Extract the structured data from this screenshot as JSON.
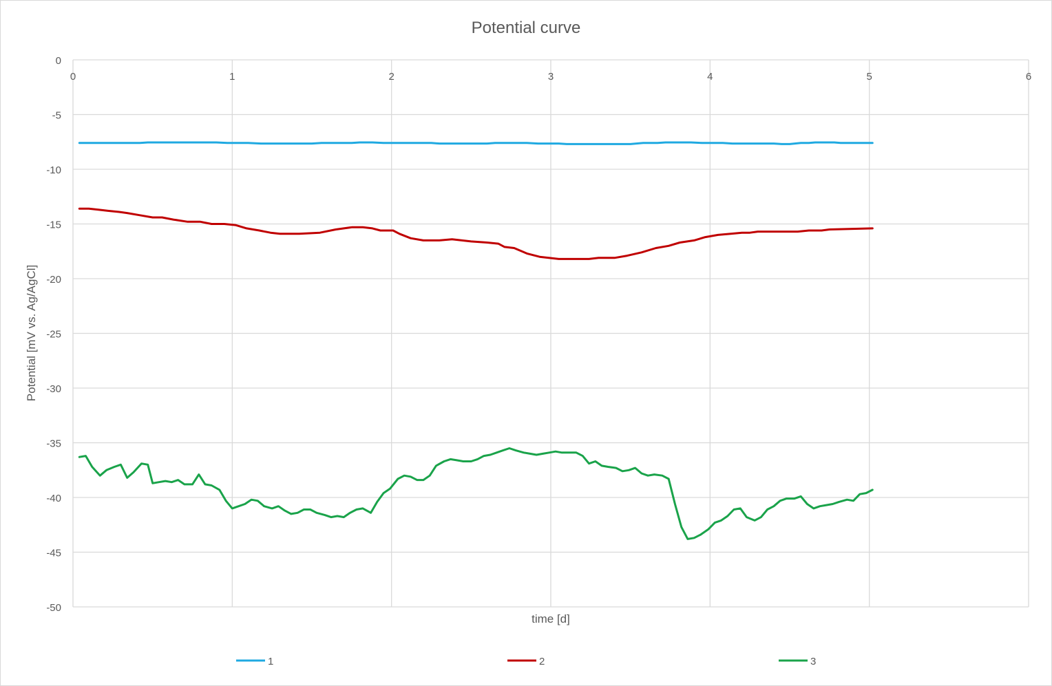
{
  "chart_data": {
    "type": "line",
    "title": "Potential curve",
    "xlabel": "time [d]",
    "ylabel": "Potential [mV vs. Ag/AgCl]",
    "xlim": [
      0,
      6
    ],
    "ylim": [
      -50,
      0
    ],
    "xticks": [
      0,
      1,
      2,
      3,
      4,
      5,
      6
    ],
    "yticks": [
      0,
      -5,
      -10,
      -15,
      -20,
      -25,
      -30,
      -35,
      -40,
      -45,
      -50
    ],
    "grid": true,
    "legend_position": "bottom",
    "series": [
      {
        "name": "1",
        "color": "#1fa9e1",
        "points": [
          [
            0.04,
            -7.6
          ],
          [
            0.3,
            -7.6
          ],
          [
            0.42,
            -7.6
          ],
          [
            0.47,
            -7.55
          ],
          [
            0.6,
            -7.55
          ],
          [
            0.9,
            -7.55
          ],
          [
            0.97,
            -7.6
          ],
          [
            1.1,
            -7.6
          ],
          [
            1.18,
            -7.65
          ],
          [
            1.5,
            -7.65
          ],
          [
            1.56,
            -7.6
          ],
          [
            1.75,
            -7.6
          ],
          [
            1.8,
            -7.55
          ],
          [
            1.88,
            -7.55
          ],
          [
            1.95,
            -7.6
          ],
          [
            2.25,
            -7.6
          ],
          [
            2.3,
            -7.65
          ],
          [
            2.6,
            -7.65
          ],
          [
            2.65,
            -7.6
          ],
          [
            2.85,
            -7.6
          ],
          [
            2.92,
            -7.65
          ],
          [
            3.05,
            -7.65
          ],
          [
            3.1,
            -7.7
          ],
          [
            3.5,
            -7.7
          ],
          [
            3.58,
            -7.6
          ],
          [
            3.67,
            -7.6
          ],
          [
            3.72,
            -7.55
          ],
          [
            3.88,
            -7.55
          ],
          [
            3.95,
            -7.6
          ],
          [
            4.08,
            -7.6
          ],
          [
            4.14,
            -7.65
          ],
          [
            4.4,
            -7.65
          ],
          [
            4.45,
            -7.7
          ],
          [
            4.5,
            -7.7
          ],
          [
            4.57,
            -7.6
          ],
          [
            4.62,
            -7.6
          ],
          [
            4.66,
            -7.55
          ],
          [
            4.78,
            -7.55
          ],
          [
            4.82,
            -7.6
          ],
          [
            5.02,
            -7.6
          ]
        ]
      },
      {
        "name": "2",
        "color": "#c00000",
        "points": [
          [
            0.04,
            -13.6
          ],
          [
            0.1,
            -13.6
          ],
          [
            0.16,
            -13.7
          ],
          [
            0.22,
            -13.8
          ],
          [
            0.29,
            -13.9
          ],
          [
            0.34,
            -14.0
          ],
          [
            0.42,
            -14.2
          ],
          [
            0.5,
            -14.4
          ],
          [
            0.56,
            -14.4
          ],
          [
            0.63,
            -14.6
          ],
          [
            0.72,
            -14.8
          ],
          [
            0.8,
            -14.8
          ],
          [
            0.87,
            -15.0
          ],
          [
            0.95,
            -15.0
          ],
          [
            1.02,
            -15.1
          ],
          [
            1.09,
            -15.4
          ],
          [
            1.17,
            -15.6
          ],
          [
            1.24,
            -15.8
          ],
          [
            1.3,
            -15.9
          ],
          [
            1.42,
            -15.9
          ],
          [
            1.55,
            -15.8
          ],
          [
            1.65,
            -15.5
          ],
          [
            1.75,
            -15.3
          ],
          [
            1.82,
            -15.3
          ],
          [
            1.88,
            -15.4
          ],
          [
            1.93,
            -15.6
          ],
          [
            2.01,
            -15.6
          ],
          [
            2.05,
            -15.9
          ],
          [
            2.12,
            -16.3
          ],
          [
            2.2,
            -16.5
          ],
          [
            2.3,
            -16.5
          ],
          [
            2.38,
            -16.4
          ],
          [
            2.5,
            -16.6
          ],
          [
            2.6,
            -16.7
          ],
          [
            2.67,
            -16.8
          ],
          [
            2.71,
            -17.1
          ],
          [
            2.77,
            -17.2
          ],
          [
            2.85,
            -17.7
          ],
          [
            2.93,
            -18.0
          ],
          [
            3.05,
            -18.2
          ],
          [
            3.15,
            -18.2
          ],
          [
            3.24,
            -18.2
          ],
          [
            3.3,
            -18.1
          ],
          [
            3.4,
            -18.1
          ],
          [
            3.48,
            -17.9
          ],
          [
            3.57,
            -17.6
          ],
          [
            3.66,
            -17.2
          ],
          [
            3.74,
            -17.0
          ],
          [
            3.81,
            -16.7
          ],
          [
            3.9,
            -16.5
          ],
          [
            3.97,
            -16.2
          ],
          [
            4.05,
            -16.0
          ],
          [
            4.13,
            -15.9
          ],
          [
            4.2,
            -15.8
          ],
          [
            4.25,
            -15.8
          ],
          [
            4.3,
            -15.7
          ],
          [
            4.45,
            -15.7
          ],
          [
            4.55,
            -15.7
          ],
          [
            4.62,
            -15.6
          ],
          [
            4.7,
            -15.6
          ],
          [
            4.75,
            -15.5
          ],
          [
            5.02,
            -15.4
          ]
        ]
      },
      {
        "name": "3",
        "color": "#1aa34a",
        "points": [
          [
            0.04,
            -36.3
          ],
          [
            0.08,
            -36.2
          ],
          [
            0.12,
            -37.2
          ],
          [
            0.17,
            -38.0
          ],
          [
            0.21,
            -37.5
          ],
          [
            0.26,
            -37.2
          ],
          [
            0.3,
            -37.0
          ],
          [
            0.34,
            -38.2
          ],
          [
            0.38,
            -37.7
          ],
          [
            0.43,
            -36.9
          ],
          [
            0.47,
            -37.0
          ],
          [
            0.5,
            -38.7
          ],
          [
            0.54,
            -38.6
          ],
          [
            0.58,
            -38.5
          ],
          [
            0.62,
            -38.6
          ],
          [
            0.66,
            -38.4
          ],
          [
            0.7,
            -38.8
          ],
          [
            0.75,
            -38.8
          ],
          [
            0.79,
            -37.9
          ],
          [
            0.83,
            -38.8
          ],
          [
            0.87,
            -38.9
          ],
          [
            0.92,
            -39.3
          ],
          [
            0.96,
            -40.3
          ],
          [
            1.0,
            -41.0
          ],
          [
            1.04,
            -40.8
          ],
          [
            1.08,
            -40.6
          ],
          [
            1.12,
            -40.2
          ],
          [
            1.16,
            -40.3
          ],
          [
            1.2,
            -40.8
          ],
          [
            1.25,
            -41.0
          ],
          [
            1.29,
            -40.8
          ],
          [
            1.33,
            -41.2
          ],
          [
            1.37,
            -41.5
          ],
          [
            1.41,
            -41.4
          ],
          [
            1.45,
            -41.1
          ],
          [
            1.49,
            -41.1
          ],
          [
            1.53,
            -41.4
          ],
          [
            1.58,
            -41.6
          ],
          [
            1.62,
            -41.8
          ],
          [
            1.66,
            -41.7
          ],
          [
            1.7,
            -41.8
          ],
          [
            1.74,
            -41.4
          ],
          [
            1.78,
            -41.1
          ],
          [
            1.82,
            -41.0
          ],
          [
            1.87,
            -41.4
          ],
          [
            1.91,
            -40.4
          ],
          [
            1.95,
            -39.6
          ],
          [
            1.99,
            -39.2
          ],
          [
            2.04,
            -38.3
          ],
          [
            2.08,
            -38.0
          ],
          [
            2.12,
            -38.1
          ],
          [
            2.16,
            -38.4
          ],
          [
            2.2,
            -38.4
          ],
          [
            2.24,
            -38.0
          ],
          [
            2.28,
            -37.1
          ],
          [
            2.33,
            -36.7
          ],
          [
            2.37,
            -36.5
          ],
          [
            2.41,
            -36.6
          ],
          [
            2.45,
            -36.7
          ],
          [
            2.5,
            -36.7
          ],
          [
            2.54,
            -36.5
          ],
          [
            2.58,
            -36.2
          ],
          [
            2.62,
            -36.1
          ],
          [
            2.66,
            -35.9
          ],
          [
            2.7,
            -35.7
          ],
          [
            2.74,
            -35.5
          ],
          [
            2.78,
            -35.7
          ],
          [
            2.83,
            -35.9
          ],
          [
            2.87,
            -36.0
          ],
          [
            2.91,
            -36.1
          ],
          [
            2.95,
            -36.0
          ],
          [
            2.99,
            -35.9
          ],
          [
            3.03,
            -35.8
          ],
          [
            3.07,
            -35.9
          ],
          [
            3.11,
            -35.9
          ],
          [
            3.16,
            -35.9
          ],
          [
            3.2,
            -36.2
          ],
          [
            3.24,
            -36.9
          ],
          [
            3.28,
            -36.7
          ],
          [
            3.32,
            -37.1
          ],
          [
            3.36,
            -37.2
          ],
          [
            3.41,
            -37.3
          ],
          [
            3.45,
            -37.6
          ],
          [
            3.49,
            -37.5
          ],
          [
            3.53,
            -37.3
          ],
          [
            3.57,
            -37.8
          ],
          [
            3.61,
            -38.0
          ],
          [
            3.65,
            -37.9
          ],
          [
            3.7,
            -38.0
          ],
          [
            3.74,
            -38.3
          ],
          [
            3.78,
            -40.6
          ],
          [
            3.82,
            -42.7
          ],
          [
            3.86,
            -43.8
          ],
          [
            3.9,
            -43.7
          ],
          [
            3.94,
            -43.4
          ],
          [
            3.99,
            -42.9
          ],
          [
            4.03,
            -42.3
          ],
          [
            4.07,
            -42.1
          ],
          [
            4.11,
            -41.7
          ],
          [
            4.15,
            -41.1
          ],
          [
            4.19,
            -41.0
          ],
          [
            4.23,
            -41.8
          ],
          [
            4.28,
            -42.1
          ],
          [
            4.32,
            -41.8
          ],
          [
            4.36,
            -41.1
          ],
          [
            4.4,
            -40.8
          ],
          [
            4.44,
            -40.3
          ],
          [
            4.48,
            -40.1
          ],
          [
            4.53,
            -40.1
          ],
          [
            4.57,
            -39.9
          ],
          [
            4.61,
            -40.6
          ],
          [
            4.65,
            -41.0
          ],
          [
            4.69,
            -40.8
          ],
          [
            4.73,
            -40.7
          ],
          [
            4.77,
            -40.6
          ],
          [
            4.81,
            -40.4
          ],
          [
            4.86,
            -40.2
          ],
          [
            4.9,
            -40.3
          ],
          [
            4.94,
            -39.7
          ],
          [
            4.98,
            -39.6
          ],
          [
            5.02,
            -39.3
          ]
        ]
      }
    ]
  }
}
